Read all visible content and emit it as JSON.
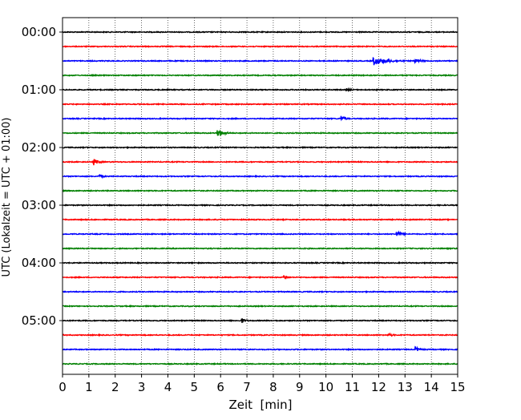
{
  "chart_data": {
    "type": "line",
    "subtype": "seismogram-dayplot",
    "xlabel": "Zeit  [min]",
    "ylabel": "UTC (Lokalzeit = UTC + 01:00)",
    "xlim": [
      0,
      15
    ],
    "x_ticks": [
      "0",
      "1",
      "2",
      "3",
      "4",
      "5",
      "6",
      "7",
      "8",
      "9",
      "10",
      "11",
      "12",
      "13",
      "14",
      "15"
    ],
    "y_tick_labels": [
      "00:00",
      "01:00",
      "02:00",
      "03:00",
      "04:00",
      "05:00"
    ],
    "trace_interval_min": 15,
    "trace_count": 24,
    "trace_colors": [
      "#000000",
      "#ff0000",
      "#0000ff",
      "#008000"
    ],
    "grid": "vertical dotted",
    "events": [
      {
        "trace": "00:30",
        "minute": 11.8,
        "amplitude": 0.55,
        "duration": 1.2
      },
      {
        "trace": "00:30",
        "minute": 13.4,
        "amplitude": 0.3,
        "duration": 0.4
      },
      {
        "trace": "01:00",
        "minute": 10.8,
        "amplitude": 0.15,
        "duration": 0.3
      },
      {
        "trace": "01:30",
        "minute": 10.6,
        "amplitude": 0.3,
        "duration": 0.3
      },
      {
        "trace": "01:45",
        "minute": 5.9,
        "amplitude": 0.5,
        "duration": 0.5
      },
      {
        "trace": "02:15",
        "minute": 1.2,
        "amplitude": 0.4,
        "duration": 0.4
      },
      {
        "trace": "02:30",
        "minute": 1.4,
        "amplitude": 0.2,
        "duration": 0.3
      },
      {
        "trace": "03:30",
        "minute": 12.7,
        "amplitude": 0.35,
        "duration": 0.4
      },
      {
        "trace": "04:15",
        "minute": 8.4,
        "amplitude": 0.3,
        "duration": 0.3
      },
      {
        "trace": "05:00",
        "minute": 6.8,
        "amplitude": 0.3,
        "duration": 0.3
      },
      {
        "trace": "05:15",
        "minute": 12.4,
        "amplitude": 0.15,
        "duration": 0.3
      },
      {
        "trace": "05:30",
        "minute": 13.4,
        "amplitude": 0.3,
        "duration": 0.4
      }
    ]
  }
}
